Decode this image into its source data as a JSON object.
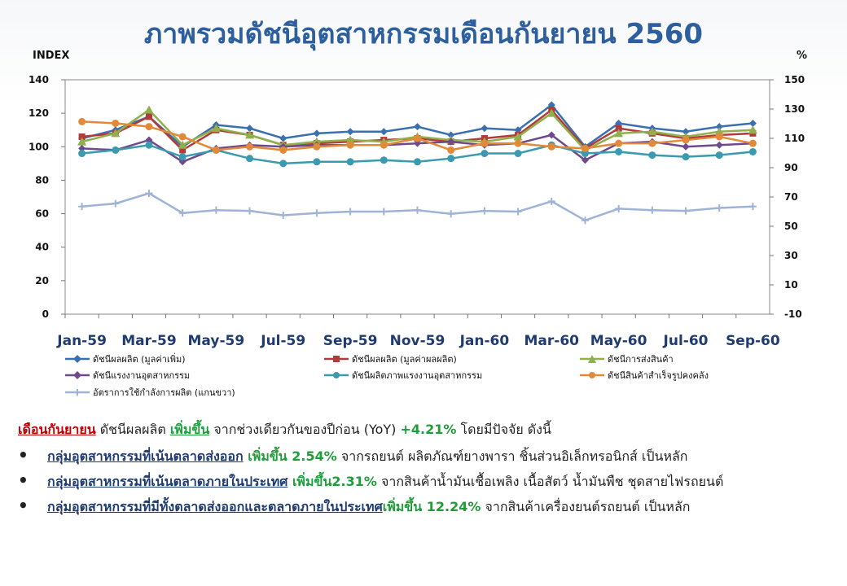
{
  "title": "ภาพรวมดัชนีอุตสาหกรรมเดือนกันยายน 2560",
  "left_unit": "INDEX",
  "right_unit": "%",
  "chart_data": {
    "type": "line",
    "x": [
      "Jan-59",
      "Feb-59",
      "Mar-59",
      "Apr-59",
      "May-59",
      "Jun-59",
      "Jul-59",
      "Aug-59",
      "Sep-59",
      "Oct-59",
      "Nov-59",
      "Dec-59",
      "Jan-60",
      "Feb-60",
      "Mar-60",
      "Apr-60",
      "May-60",
      "Jun-60",
      "Jul-60",
      "Aug-60",
      "Sep-60"
    ],
    "x_tick_labels": [
      "Jan-59",
      "Mar-59",
      "May-59",
      "Jul-59",
      "Sep-59",
      "Nov-59",
      "Jan-60",
      "Mar-60",
      "May-60",
      "Jul-60",
      "Sep-60"
    ],
    "y_left": {
      "min": 0,
      "max": 140,
      "ticks": [
        0,
        20,
        40,
        60,
        80,
        100,
        120,
        140
      ]
    },
    "y_right": {
      "min": -10,
      "max": 150,
      "ticks": [
        -10,
        10,
        30,
        50,
        70,
        90,
        110,
        130,
        150
      ]
    },
    "series": [
      {
        "name": "ดัชนีผลผลิต (มูลค่าเพิ่ม)",
        "color": "#3a6fb0",
        "marker": "diamond",
        "axis": "left",
        "values": [
          105,
          110,
          118,
          100,
          113,
          111,
          105,
          108,
          109,
          109,
          112,
          107,
          111,
          110,
          125,
          100,
          114,
          111,
          109,
          112,
          114
        ]
      },
      {
        "name": "ดัชนีผลผลิต (มูลค่าผลผลิต)",
        "color": "#b33a3a",
        "marker": "square",
        "axis": "left",
        "values": [
          106,
          108,
          118,
          98,
          110,
          107,
          101,
          102,
          103,
          104,
          105,
          103,
          105,
          107,
          122,
          99,
          111,
          108,
          105,
          107,
          108
        ]
      },
      {
        "name": "ดัชนีการส่งสินค้า",
        "color": "#8fb04a",
        "marker": "triangle",
        "axis": "left",
        "values": [
          103,
          108,
          122,
          101,
          111,
          107,
          101,
          103,
          104,
          103,
          106,
          104,
          103,
          106,
          120,
          98,
          108,
          109,
          106,
          109,
          110
        ]
      },
      {
        "name": "ดัชนีแรงงานอุตสาหกรรม",
        "color": "#6e4a8c",
        "marker": "diamond",
        "axis": "left",
        "values": [
          99,
          98,
          104,
          91,
          99,
          101,
          100,
          101,
          101,
          101,
          102,
          103,
          101,
          102,
          107,
          92,
          102,
          103,
          100,
          101,
          102
        ]
      },
      {
        "name": "ดัชนีผลิตภาพแรงงานอุตสาหกรรม",
        "color": "#3a9ab0",
        "marker": "circle",
        "axis": "left",
        "values": [
          96,
          98,
          101,
          94,
          98,
          93,
          90,
          91,
          91,
          92,
          91,
          93,
          96,
          96,
          101,
          96,
          97,
          95,
          94,
          95,
          97
        ]
      },
      {
        "name": "ดัชนีสินค้าสำเร็จรูปคงคลัง",
        "color": "#e3893a",
        "marker": "circle",
        "axis": "left",
        "values": [
          115,
          114,
          112,
          106,
          98,
          100,
          98,
          100,
          101,
          101,
          105,
          98,
          102,
          102,
          100,
          99,
          102,
          102,
          104,
          106,
          102
        ]
      },
      {
        "name": "อัตราการใช้กำลังการผลิต (แกนขวา)",
        "color": "#9fb3d6",
        "marker": "plus",
        "axis": "right",
        "values": [
          63.5,
          65.5,
          72.5,
          59,
          61,
          60.5,
          57.5,
          59,
          60,
          60,
          61,
          58.5,
          60.5,
          60,
          67,
          54,
          62,
          61,
          60.5,
          62.5,
          63.5
        ]
      }
    ]
  },
  "text": {
    "line1_a": "เดือนกันยายน",
    "line1_b": " ดัชนีผลผลิต ",
    "line1_c": "เพิ่มขึ้น",
    "line1_d": " จากช่วงเดียวกันของปีก่อน (YoY) ",
    "line1_e": "+4.21%",
    "line1_f": " โดยมีปัจจัย ดังนี้",
    "line2_a": "กลุ่มอุตสาหกรรมที่เน้นตลาดส่งออก",
    "line2_b": " เพิ่มขึ้น 2.54%",
    "line2_c": " จากรถยนต์ ผลิตภัณฑ์ยางพารา ชิ้นส่วนอิเล็กทรอนิกส์ เป็นหลัก",
    "line3_a": "กลุ่มอุตสาหกรรมที่เน้นตลาดภายในประเทศ",
    "line3_b": " เพิ่มขึ้น2.31%",
    "line3_c": " จากสินค้าน้ำมันเชื้อเพลิง เนื้อสัตว์ น้ำมันพืช ชุดสายไฟรถยนต์",
    "line4_a": "กลุ่มอุตสาหกรรมที่มีทั้งตลาดส่งออกและตลาดภายในประเทศ",
    "line4_b": "เพิ่มขึ้น 12.24%",
    "line4_c": " จากสินค้าเครื่องยนต์รถยนต์ เป็นหลัก",
    "bullet": "•"
  }
}
